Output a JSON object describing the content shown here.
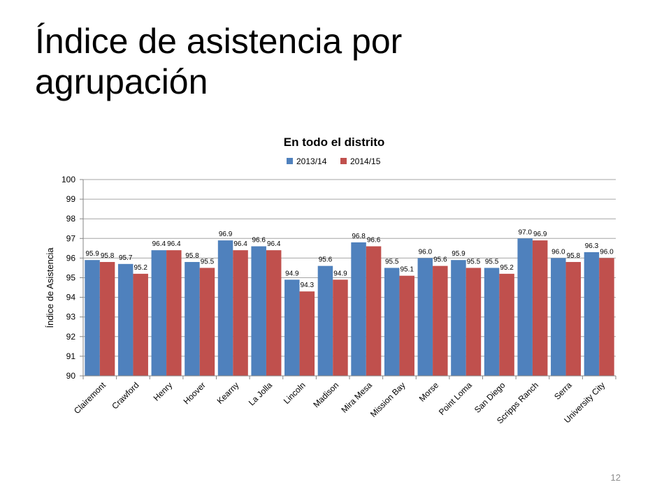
{
  "slide": {
    "title_lines": [
      "Índice de asistencia por",
      "agrupación"
    ],
    "page_number": "12"
  },
  "chart_data": {
    "type": "bar",
    "title": "En todo el distrito",
    "ylabel": "Índice de Asistencia",
    "xlabel": "",
    "ylim": [
      90,
      100
    ],
    "yticks": [
      90,
      91,
      92,
      93,
      94,
      95,
      96,
      97,
      98,
      99,
      100
    ],
    "grid": true,
    "legend": "top",
    "categories": [
      "Clairemont",
      "Crawford",
      "Henry",
      "Hoover",
      "Kearny",
      "La Jolla",
      "Lincoln",
      "Madison",
      "Mira Mesa",
      "Mission Bay",
      "Morse",
      "Point Loma",
      "San Diego",
      "Scripps Ranch",
      "Serra",
      "University City"
    ],
    "series": [
      {
        "name": "2013/14",
        "color": "#4f81bd",
        "values": [
          95.9,
          95.7,
          96.4,
          95.8,
          96.9,
          96.6,
          94.9,
          95.6,
          96.8,
          95.5,
          96.0,
          95.9,
          95.5,
          97.0,
          96.0,
          96.3
        ],
        "labels": [
          "95.9",
          "95.7",
          "96.4",
          "95.8",
          "96.9",
          "96.6",
          "94.9",
          "95.6",
          "96.8",
          "95.5",
          "96.0",
          "95.9",
          "95.5",
          "97.0",
          "96.0",
          "96.3"
        ]
      },
      {
        "name": "2014/15",
        "color": "#c0504d",
        "values": [
          95.8,
          95.2,
          96.4,
          95.5,
          96.4,
          96.4,
          94.3,
          94.9,
          96.6,
          95.1,
          95.6,
          95.5,
          95.2,
          96.9,
          95.8,
          96.0
        ],
        "labels": [
          "95.8",
          "95.2",
          "96.4",
          "95.5",
          "96.4",
          "96.4",
          "94.3",
          "94.9",
          "96.6",
          "95.1",
          "95.6",
          "95.5",
          "95.2",
          "96.9",
          "95.8",
          "96.0"
        ]
      }
    ]
  }
}
